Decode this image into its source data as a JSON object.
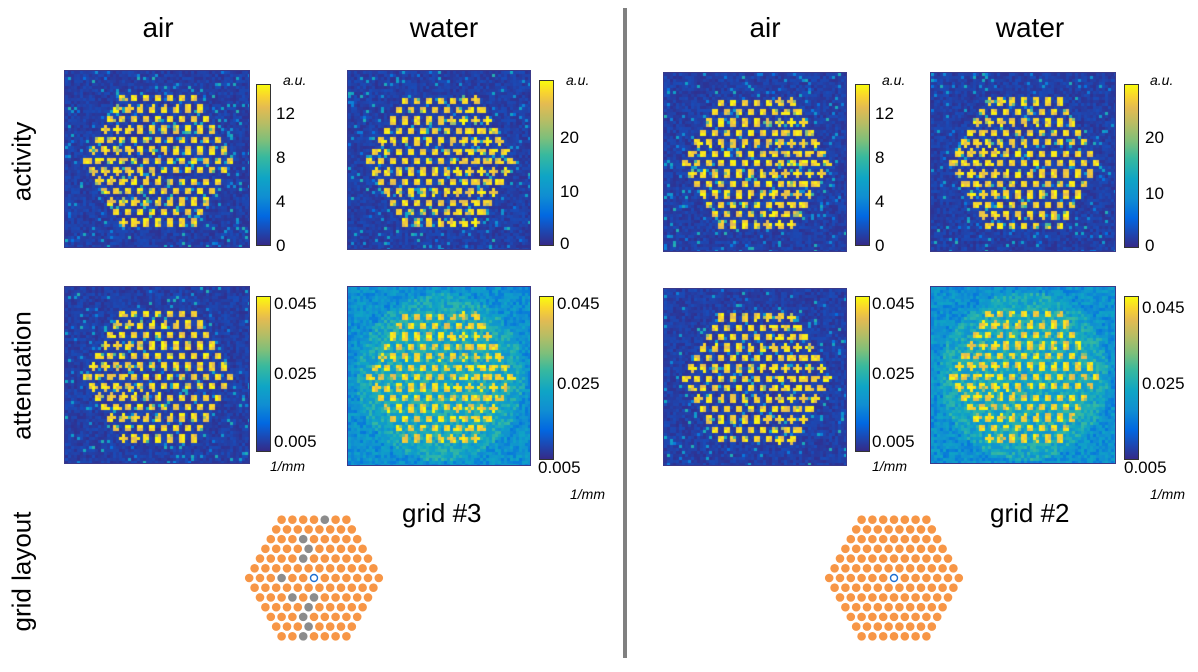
{
  "column_titles": [
    "air",
    "water",
    "air",
    "water"
  ],
  "row_labels": {
    "activity": "activity",
    "attenuation": "attenuation",
    "grid": "grid layout"
  },
  "activity_colorbars": {
    "air": {
      "unit": "a.u.",
      "ticks": [
        "12",
        "8",
        "4",
        "0"
      ]
    },
    "water": {
      "unit": "a.u.",
      "ticks": [
        "20",
        "10",
        "0"
      ]
    }
  },
  "attenuation_colorbar": {
    "unit": "1/mm",
    "ticks": [
      "0.045",
      "0.025",
      "0.005"
    ]
  },
  "panels": [
    {
      "id": "grid3",
      "grid_label": "grid #3",
      "gray_rods": [
        [
          0,
          4
        ],
        [
          2,
          3
        ],
        [
          3,
          4
        ],
        [
          4,
          4
        ],
        [
          6,
          3
        ],
        [
          8,
          3
        ],
        [
          8,
          5
        ],
        [
          9,
          4
        ],
        [
          10,
          3
        ],
        [
          11,
          3
        ],
        [
          12,
          2
        ]
      ]
    },
    {
      "id": "grid2",
      "grid_label": "grid #2",
      "gray_rods": []
    }
  ],
  "colors": {
    "rod": "#f79646",
    "gray_rod": "#8c8c8c",
    "center_marker": "#1f6fd0",
    "divider": "#808080",
    "heat_low": "#352a87",
    "heat_high": "#f9fb0e"
  }
}
